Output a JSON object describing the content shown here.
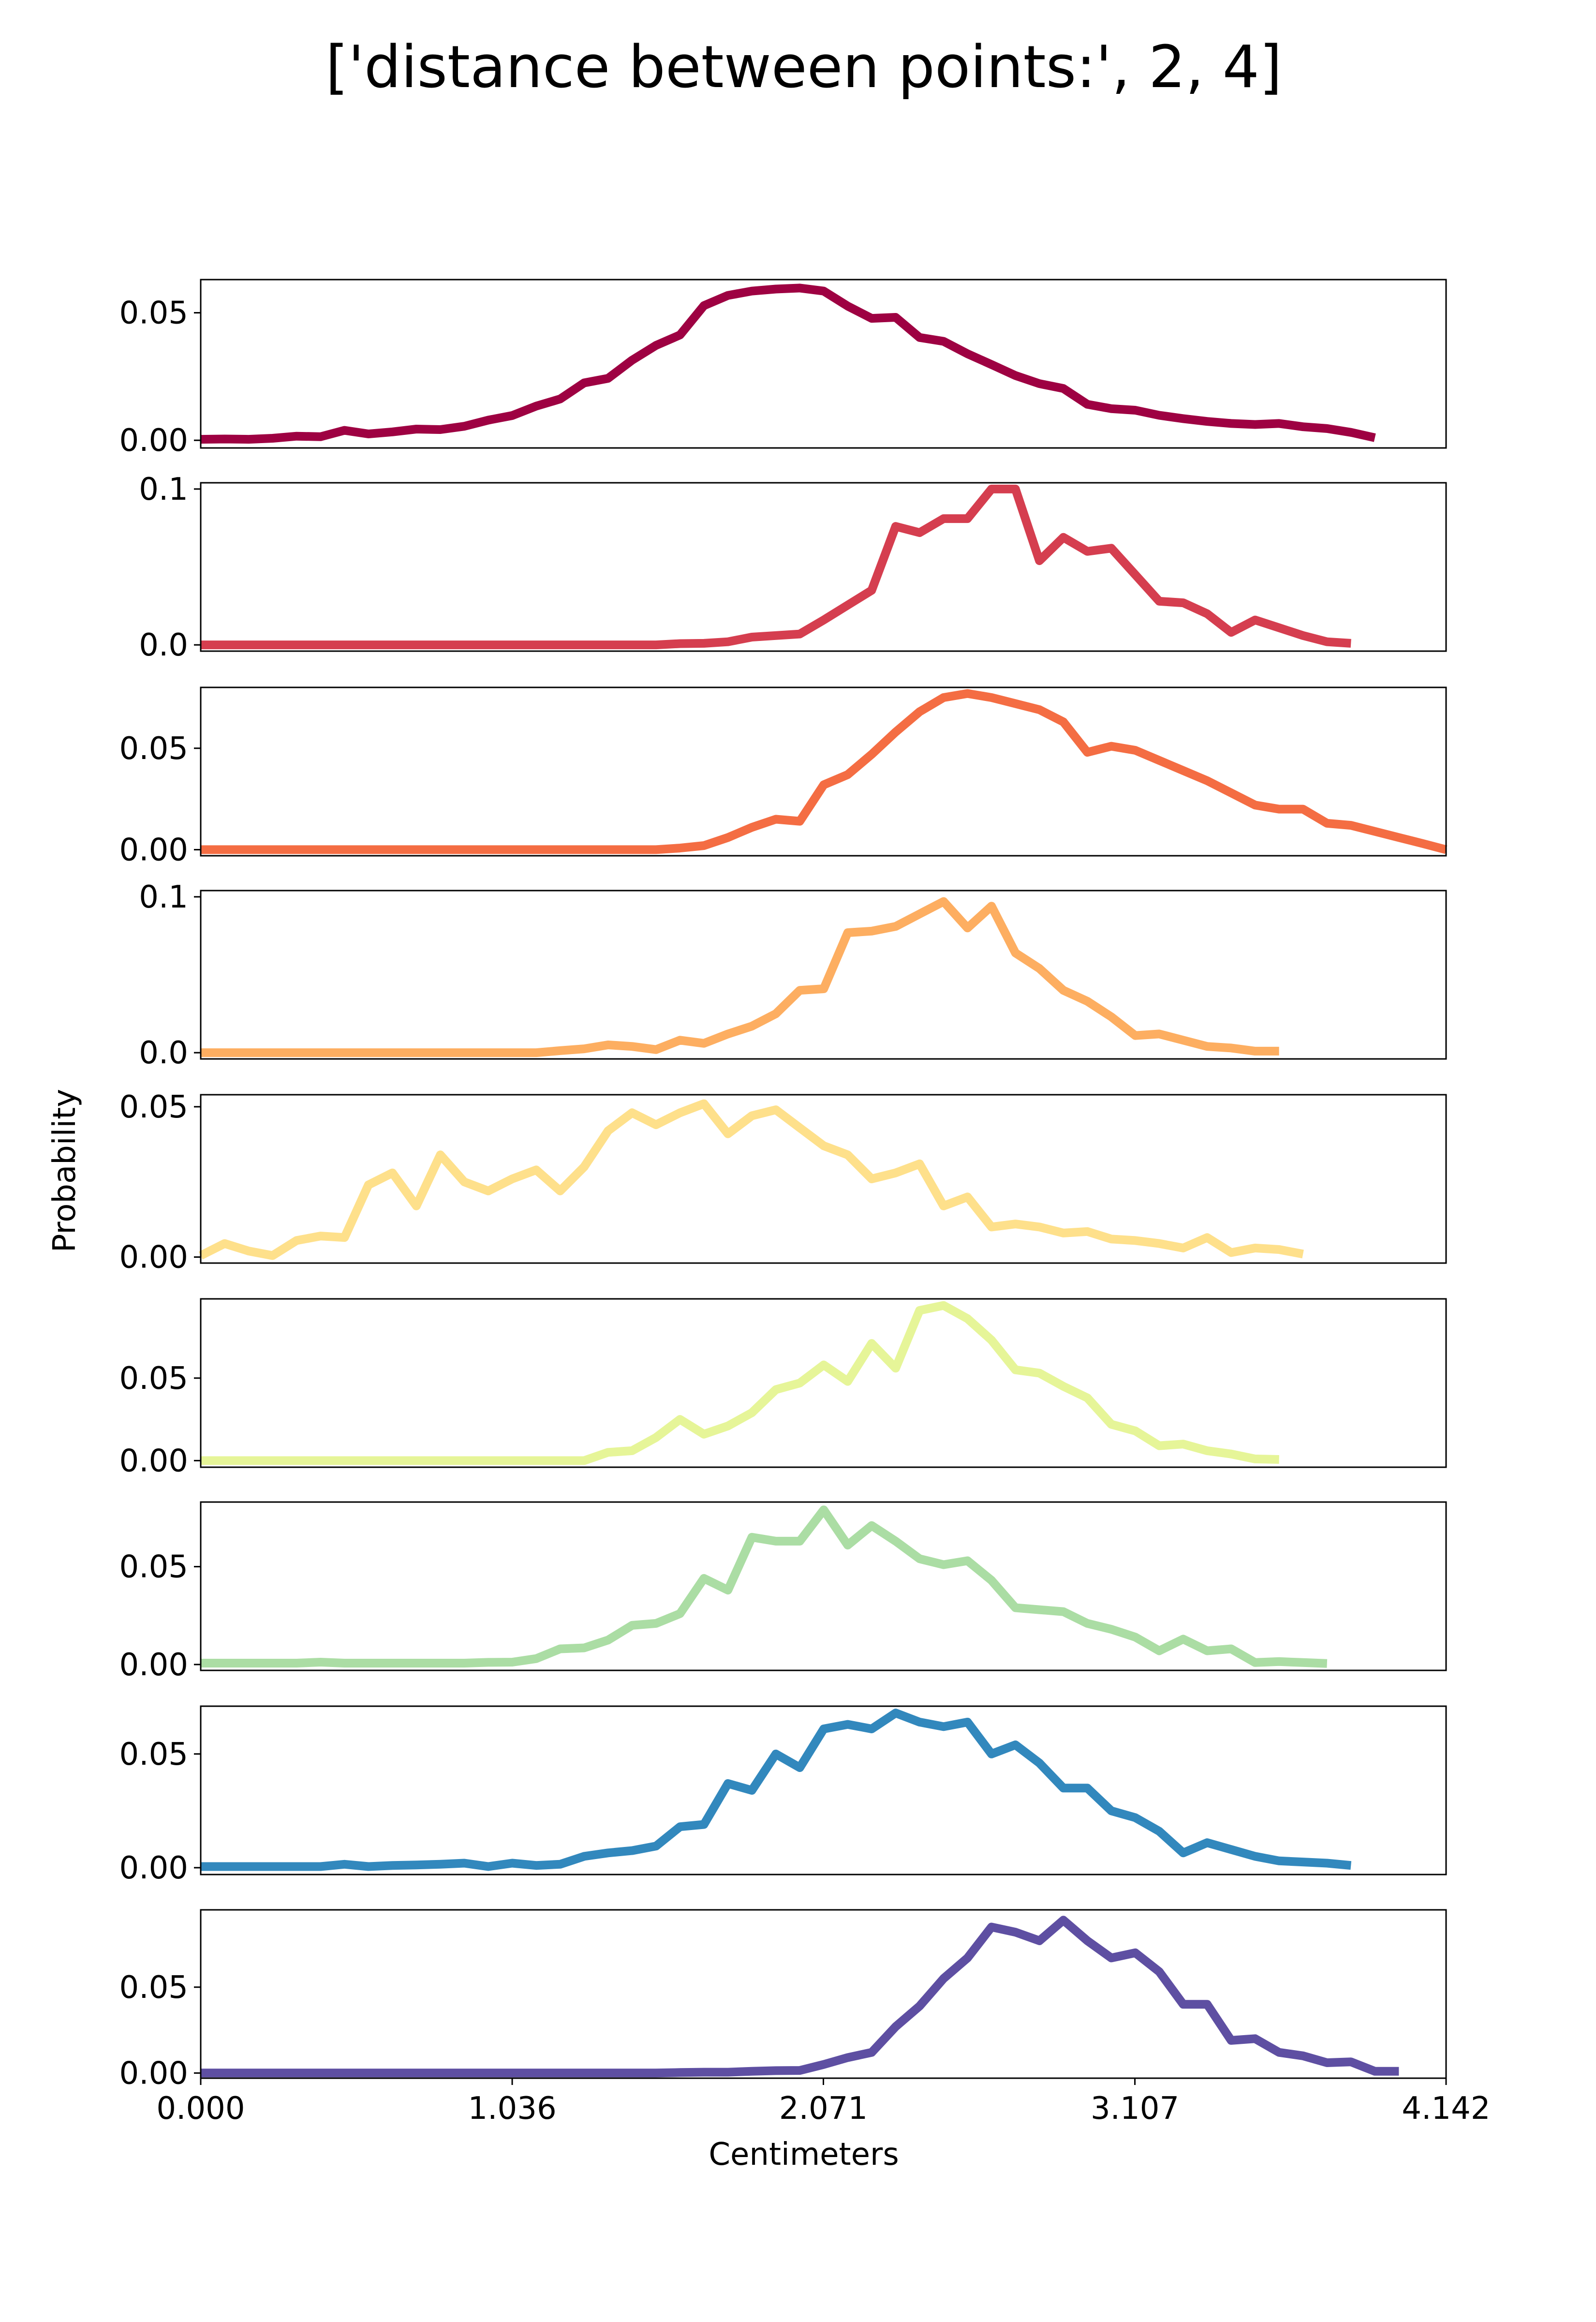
{
  "chart_data": {
    "type": "line",
    "title": "['distance between points:', 2, 4]",
    "xlabel": "Centimeters",
    "ylabel": "Probability",
    "grid": false,
    "legend": "none",
    "xlim": [
      0,
      4.142
    ],
    "x_ticks": [
      "0.000",
      "1.036",
      "2.071",
      "3.107",
      "4.142"
    ],
    "x_tick_values": [
      0,
      1.036,
      2.071,
      3.107,
      4.142
    ],
    "x_step": 0.0797,
    "panels": [
      {
        "color": "#9e0142",
        "ylim": [
          -0.003,
          0.063
        ],
        "y_ticks": [
          0.0,
          0.05
        ],
        "y_tick_labels": [
          "0.00",
          "0.05"
        ],
        "values": [
          0.0004,
          0.0005,
          0.0004,
          0.0008,
          0.0016,
          0.0014,
          0.0039,
          0.0025,
          0.0033,
          0.0044,
          0.0042,
          0.0055,
          0.0079,
          0.0097,
          0.0134,
          0.0162,
          0.0225,
          0.0243,
          0.0314,
          0.0372,
          0.0413,
          0.0528,
          0.0568,
          0.0585,
          0.0593,
          0.0597,
          0.0585,
          0.0526,
          0.0478,
          0.0482,
          0.0403,
          0.0388,
          0.0339,
          0.0297,
          0.0254,
          0.0222,
          0.0203,
          0.0141,
          0.0124,
          0.0118,
          0.0098,
          0.0085,
          0.0074,
          0.0066,
          0.0062,
          0.0066,
          0.0053,
          0.0046,
          0.0031,
          0.001
        ]
      },
      {
        "color": "#d53e4f",
        "ylim": [
          -0.004,
          0.104
        ],
        "y_ticks": [
          0.0,
          0.1
        ],
        "y_tick_labels": [
          "0.0",
          "0.1"
        ],
        "values": [
          0,
          0,
          0,
          0,
          0,
          0,
          0,
          0,
          0,
          0,
          0,
          0,
          0,
          0,
          0,
          0,
          0,
          0,
          0,
          0,
          0.0008,
          0.001,
          0.002,
          0.005,
          0.006,
          0.007,
          0.016,
          0.0255,
          0.035,
          0.076,
          0.072,
          0.081,
          0.081,
          0.1,
          0.1,
          0.054,
          0.069,
          0.06,
          0.062,
          0.045,
          0.028,
          0.027,
          0.02,
          0.008,
          0.016,
          0.011,
          0.006,
          0.002,
          0.001
        ]
      },
      {
        "color": "#f46d43",
        "ylim": [
          -0.003,
          0.08
        ],
        "y_ticks": [
          0.0,
          0.05
        ],
        "y_tick_labels": [
          "0.00",
          "0.05"
        ],
        "values": [
          0,
          0,
          0,
          0,
          0,
          0,
          0,
          0,
          0,
          0,
          0,
          0,
          0,
          0,
          0,
          0,
          0,
          0,
          0,
          0,
          0.0008,
          0.002,
          0.006,
          0.011,
          0.015,
          0.014,
          0.032,
          0.037,
          0.047,
          0.058,
          0.068,
          0.075,
          0.077,
          0.075,
          0.072,
          0.069,
          0.063,
          0.048,
          0.051,
          0.049,
          0.044,
          0.039,
          0.034,
          0.028,
          0.022,
          0.02,
          0.02,
          0.013,
          0.012,
          0.009,
          0.006,
          0.003,
          0.0
        ]
      },
      {
        "color": "#fdae61",
        "ylim": [
          -0.004,
          0.104
        ],
        "y_ticks": [
          0.0,
          0.1
        ],
        "y_tick_labels": [
          "0.0",
          "0.1"
        ],
        "values": [
          0,
          0,
          0,
          0,
          0,
          0,
          0,
          0,
          0,
          0,
          0,
          0,
          0,
          0,
          0,
          0.0013,
          0.0025,
          0.005,
          0.004,
          0.002,
          0.008,
          0.006,
          0.012,
          0.017,
          0.025,
          0.04,
          0.041,
          0.077,
          0.078,
          0.081,
          0.089,
          0.097,
          0.08,
          0.094,
          0.064,
          0.054,
          0.04,
          0.033,
          0.023,
          0.011,
          0.012,
          0.008,
          0.004,
          0.003,
          0.001,
          0.001
        ]
      },
      {
        "color": "#fee08b",
        "ylim": [
          -0.002,
          0.054
        ],
        "y_ticks": [
          0.0,
          0.05
        ],
        "y_tick_labels": [
          "0.00",
          "0.05"
        ],
        "values": [
          0.0005,
          0.0045,
          0.002,
          0.0005,
          0.0055,
          0.007,
          0.0065,
          0.024,
          0.028,
          0.017,
          0.034,
          0.025,
          0.022,
          0.026,
          0.029,
          0.022,
          0.03,
          0.042,
          0.048,
          0.044,
          0.048,
          0.051,
          0.041,
          0.047,
          0.049,
          0.043,
          0.037,
          0.034,
          0.026,
          0.028,
          0.031,
          0.017,
          0.02,
          0.01,
          0.011,
          0.01,
          0.008,
          0.0085,
          0.006,
          0.0055,
          0.0045,
          0.003,
          0.0065,
          0.0015,
          0.003,
          0.0025,
          0.001
        ]
      },
      {
        "color": "#e6f598",
        "ylim": [
          -0.004,
          0.098
        ],
        "y_ticks": [
          0.0,
          0.05
        ],
        "y_tick_labels": [
          "0.00",
          "0.05"
        ],
        "values": [
          0,
          0,
          0,
          0,
          0,
          0,
          0,
          0,
          0,
          0,
          0,
          0,
          0,
          0,
          0,
          0,
          0,
          0.005,
          0.006,
          0.014,
          0.025,
          0.016,
          0.021,
          0.029,
          0.043,
          0.047,
          0.058,
          0.048,
          0.071,
          0.056,
          0.091,
          0.094,
          0.086,
          0.073,
          0.055,
          0.053,
          0.045,
          0.038,
          0.022,
          0.018,
          0.009,
          0.01,
          0.006,
          0.004,
          0.001,
          0.0007
        ]
      },
      {
        "color": "#abdda4",
        "ylim": [
          -0.003,
          0.083
        ],
        "y_ticks": [
          0.0,
          0.05
        ],
        "y_tick_labels": [
          "0.00",
          "0.05"
        ],
        "values": [
          0.0007,
          0.0007,
          0.0007,
          0.0007,
          0.0007,
          0.0012,
          0.0007,
          0.0007,
          0.0007,
          0.0007,
          0.0007,
          0.0007,
          0.0011,
          0.0012,
          0.003,
          0.008,
          0.0085,
          0.0125,
          0.02,
          0.021,
          0.026,
          0.044,
          0.038,
          0.065,
          0.063,
          0.063,
          0.079,
          0.061,
          0.071,
          0.063,
          0.054,
          0.051,
          0.053,
          0.043,
          0.029,
          0.028,
          0.027,
          0.021,
          0.018,
          0.014,
          0.007,
          0.013,
          0.007,
          0.008,
          0.001,
          0.0015,
          0.001,
          0.0005
        ]
      },
      {
        "color": "#3288bd",
        "ylim": [
          -0.003,
          0.071
        ],
        "y_ticks": [
          0.0,
          0.05
        ],
        "y_tick_labels": [
          "0.00",
          "0.05"
        ],
        "values": [
          0.0005,
          0.0005,
          0.0005,
          0.0005,
          0.0005,
          0.0005,
          0.0015,
          0.0005,
          0.001,
          0.0012,
          0.0015,
          0.002,
          0.0005,
          0.002,
          0.001,
          0.0015,
          0.005,
          0.0065,
          0.0075,
          0.0095,
          0.018,
          0.019,
          0.037,
          0.034,
          0.05,
          0.044,
          0.061,
          0.063,
          0.061,
          0.068,
          0.064,
          0.062,
          0.064,
          0.05,
          0.054,
          0.046,
          0.035,
          0.035,
          0.025,
          0.022,
          0.016,
          0.0065,
          0.011,
          0.008,
          0.005,
          0.003,
          0.0025,
          0.002,
          0.001
        ]
      },
      {
        "color": "#5e4fa2",
        "ylim": [
          -0.003,
          0.095
        ],
        "y_ticks": [
          0.0,
          0.05
        ],
        "y_tick_labels": [
          "0.00",
          "0.05"
        ],
        "values": [
          0,
          0,
          0,
          0,
          0,
          0,
          0,
          0,
          0,
          0,
          0,
          0,
          0,
          0,
          0,
          0,
          0,
          0,
          0,
          0,
          0.0003,
          0.0005,
          0.0005,
          0.001,
          0.0014,
          0.0015,
          0.005,
          0.009,
          0.012,
          0.027,
          0.039,
          0.055,
          0.067,
          0.085,
          0.082,
          0.077,
          0.089,
          0.077,
          0.067,
          0.07,
          0.059,
          0.04,
          0.04,
          0.019,
          0.02,
          0.012,
          0.01,
          0.006,
          0.0065,
          0.001,
          0.001
        ]
      }
    ]
  }
}
